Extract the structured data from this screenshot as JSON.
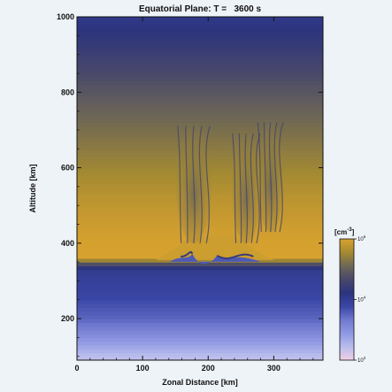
{
  "chart_data": {
    "type": "heatmap",
    "title": "Equatorial Plane: T =   3600 s",
    "xlabel": "Zonal Distance [km]",
    "ylabel": "Altitude [km]",
    "xlim": [
      0,
      375
    ],
    "ylim": [
      90,
      1000
    ],
    "x_ticks": [
      "0",
      "100",
      "200",
      "300"
    ],
    "x_tick_values": [
      0,
      100,
      200,
      300
    ],
    "y_ticks": [
      "200",
      "400",
      "600",
      "800",
      "1000"
    ],
    "y_tick_values": [
      200,
      400,
      600,
      800,
      1000
    ],
    "colorbar": {
      "unit": "[cm^-3]",
      "unit_base": "cm",
      "unit_exp": "-3",
      "ticks": [
        {
          "base": "10",
          "exp": "6",
          "log_value": 6
        },
        {
          "base": "10",
          "exp": "4",
          "log_value": 4
        },
        {
          "base": "10",
          "exp": "2",
          "log_value": 2
        }
      ],
      "log_range": [
        2,
        6
      ],
      "colors": [
        "#f1cfe6",
        "#b8bcec",
        "#8f98e2",
        "#6f79cf",
        "#3a46a6",
        "#2c347e",
        "#48486b",
        "#6e6755",
        "#a48a32",
        "#d8a22e"
      ]
    },
    "background_profile": [
      {
        "altitude": 100,
        "log_density": 2.4
      },
      {
        "altitude": 150,
        "log_density": 3.0
      },
      {
        "altitude": 200,
        "log_density": 3.5
      },
      {
        "altitude": 260,
        "log_density": 3.8
      },
      {
        "altitude": 330,
        "log_density": 4.0
      },
      {
        "altitude": 350,
        "log_density": 5.0
      },
      {
        "altitude": 360,
        "log_density": 6.0
      },
      {
        "altitude": 420,
        "log_density": 5.95
      },
      {
        "altitude": 520,
        "log_density": 5.75
      },
      {
        "altitude": 620,
        "log_density": 5.45
      },
      {
        "altitude": 720,
        "log_density": 5.15
      },
      {
        "altitude": 820,
        "log_density": 4.8
      },
      {
        "altitude": 920,
        "log_density": 4.4
      },
      {
        "altitude": 1000,
        "log_density": 4.1
      }
    ],
    "plumes": [
      {
        "x_center": 178,
        "base_altitude": 400,
        "top_altitude": 720,
        "width": 55
      },
      {
        "x_center": 258,
        "base_altitude": 400,
        "top_altitude": 700,
        "width": 45
      },
      {
        "x_center": 295,
        "base_altitude": 430,
        "top_altitude": 730,
        "width": 40
      }
    ],
    "depletion": {
      "x_min": 150,
      "x_max": 250,
      "top_altitude": 400
    }
  }
}
